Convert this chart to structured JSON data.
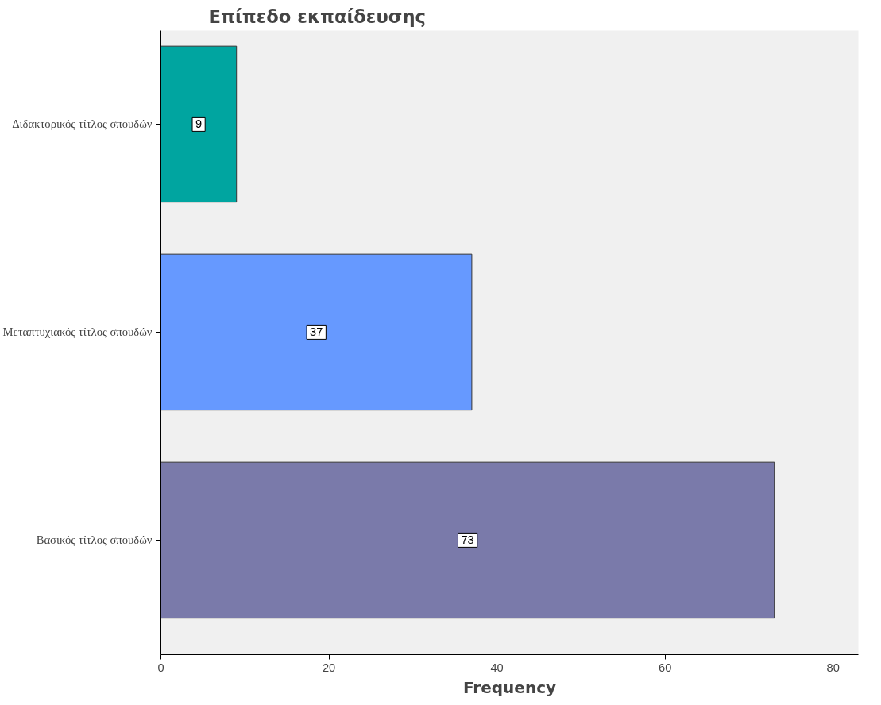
{
  "chart_data": {
    "type": "bar",
    "orientation": "horizontal",
    "title": "Επίπεδο εκπαίδευσης",
    "xlabel": "Frequency",
    "categories": [
      "Διδακτορικός τίτλος σπουδών",
      "Μεταπτυχιακός τίτλος σπουδών",
      "Βασικός τίτλος σπουδών"
    ],
    "values": [
      9,
      37,
      73
    ],
    "colors": [
      "#00a5a0",
      "#6699ff",
      "#7a7aaa"
    ],
    "xlim": [
      0,
      83
    ],
    "xticks": [
      0,
      20,
      40,
      60,
      80
    ],
    "data_labels": true,
    "grid": false
  }
}
